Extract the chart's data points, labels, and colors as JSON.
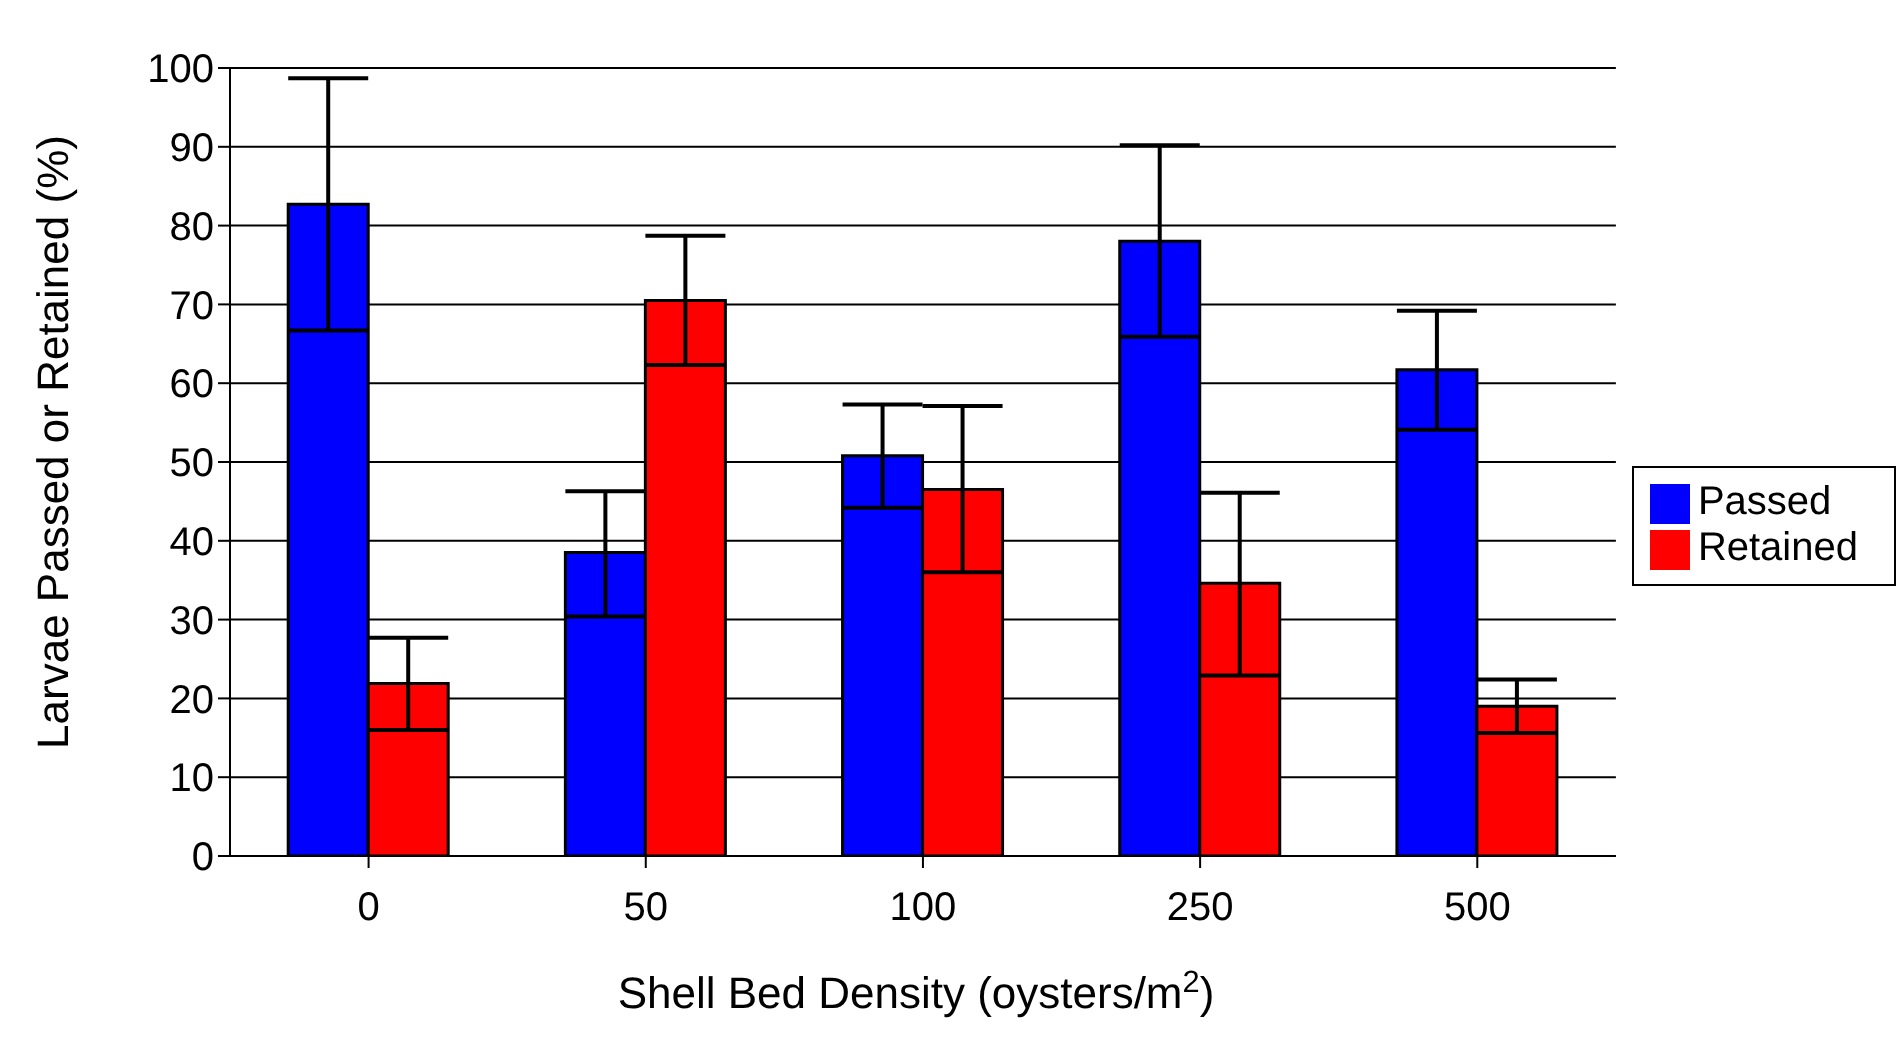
{
  "chart_data": {
    "type": "bar",
    "xlabel": "Shell Bed Density (oysters/m$^{2}$)",
    "ylabel": "Larvae Passed or Retained (%)",
    "categories": [
      "0",
      "50",
      "100",
      "250",
      "500"
    ],
    "series": [
      {
        "name": "Passed",
        "color": "#0000ff",
        "values": [
          82.7,
          38.5,
          50.8,
          78.0,
          61.7
        ],
        "errors": [
          [
            66.7,
            98.7
          ],
          [
            30.4,
            46.3
          ],
          [
            44.2,
            57.3
          ],
          [
            65.9,
            90.2
          ],
          [
            54.1,
            69.2
          ]
        ]
      },
      {
        "name": "Retained",
        "color": "#ff0000",
        "values": [
          21.9,
          70.5,
          46.5,
          34.6,
          19.0
        ],
        "errors": [
          [
            16.0,
            27.7
          ],
          [
            62.3,
            78.7
          ],
          [
            36.0,
            57.1
          ],
          [
            22.9,
            46.1
          ],
          [
            15.6,
            22.4
          ]
        ]
      }
    ],
    "ylim": [
      0,
      100
    ],
    "yticks": [
      0,
      10,
      20,
      30,
      40,
      50,
      60,
      70,
      80,
      90,
      100
    ],
    "grid": "y",
    "legend": "right"
  }
}
